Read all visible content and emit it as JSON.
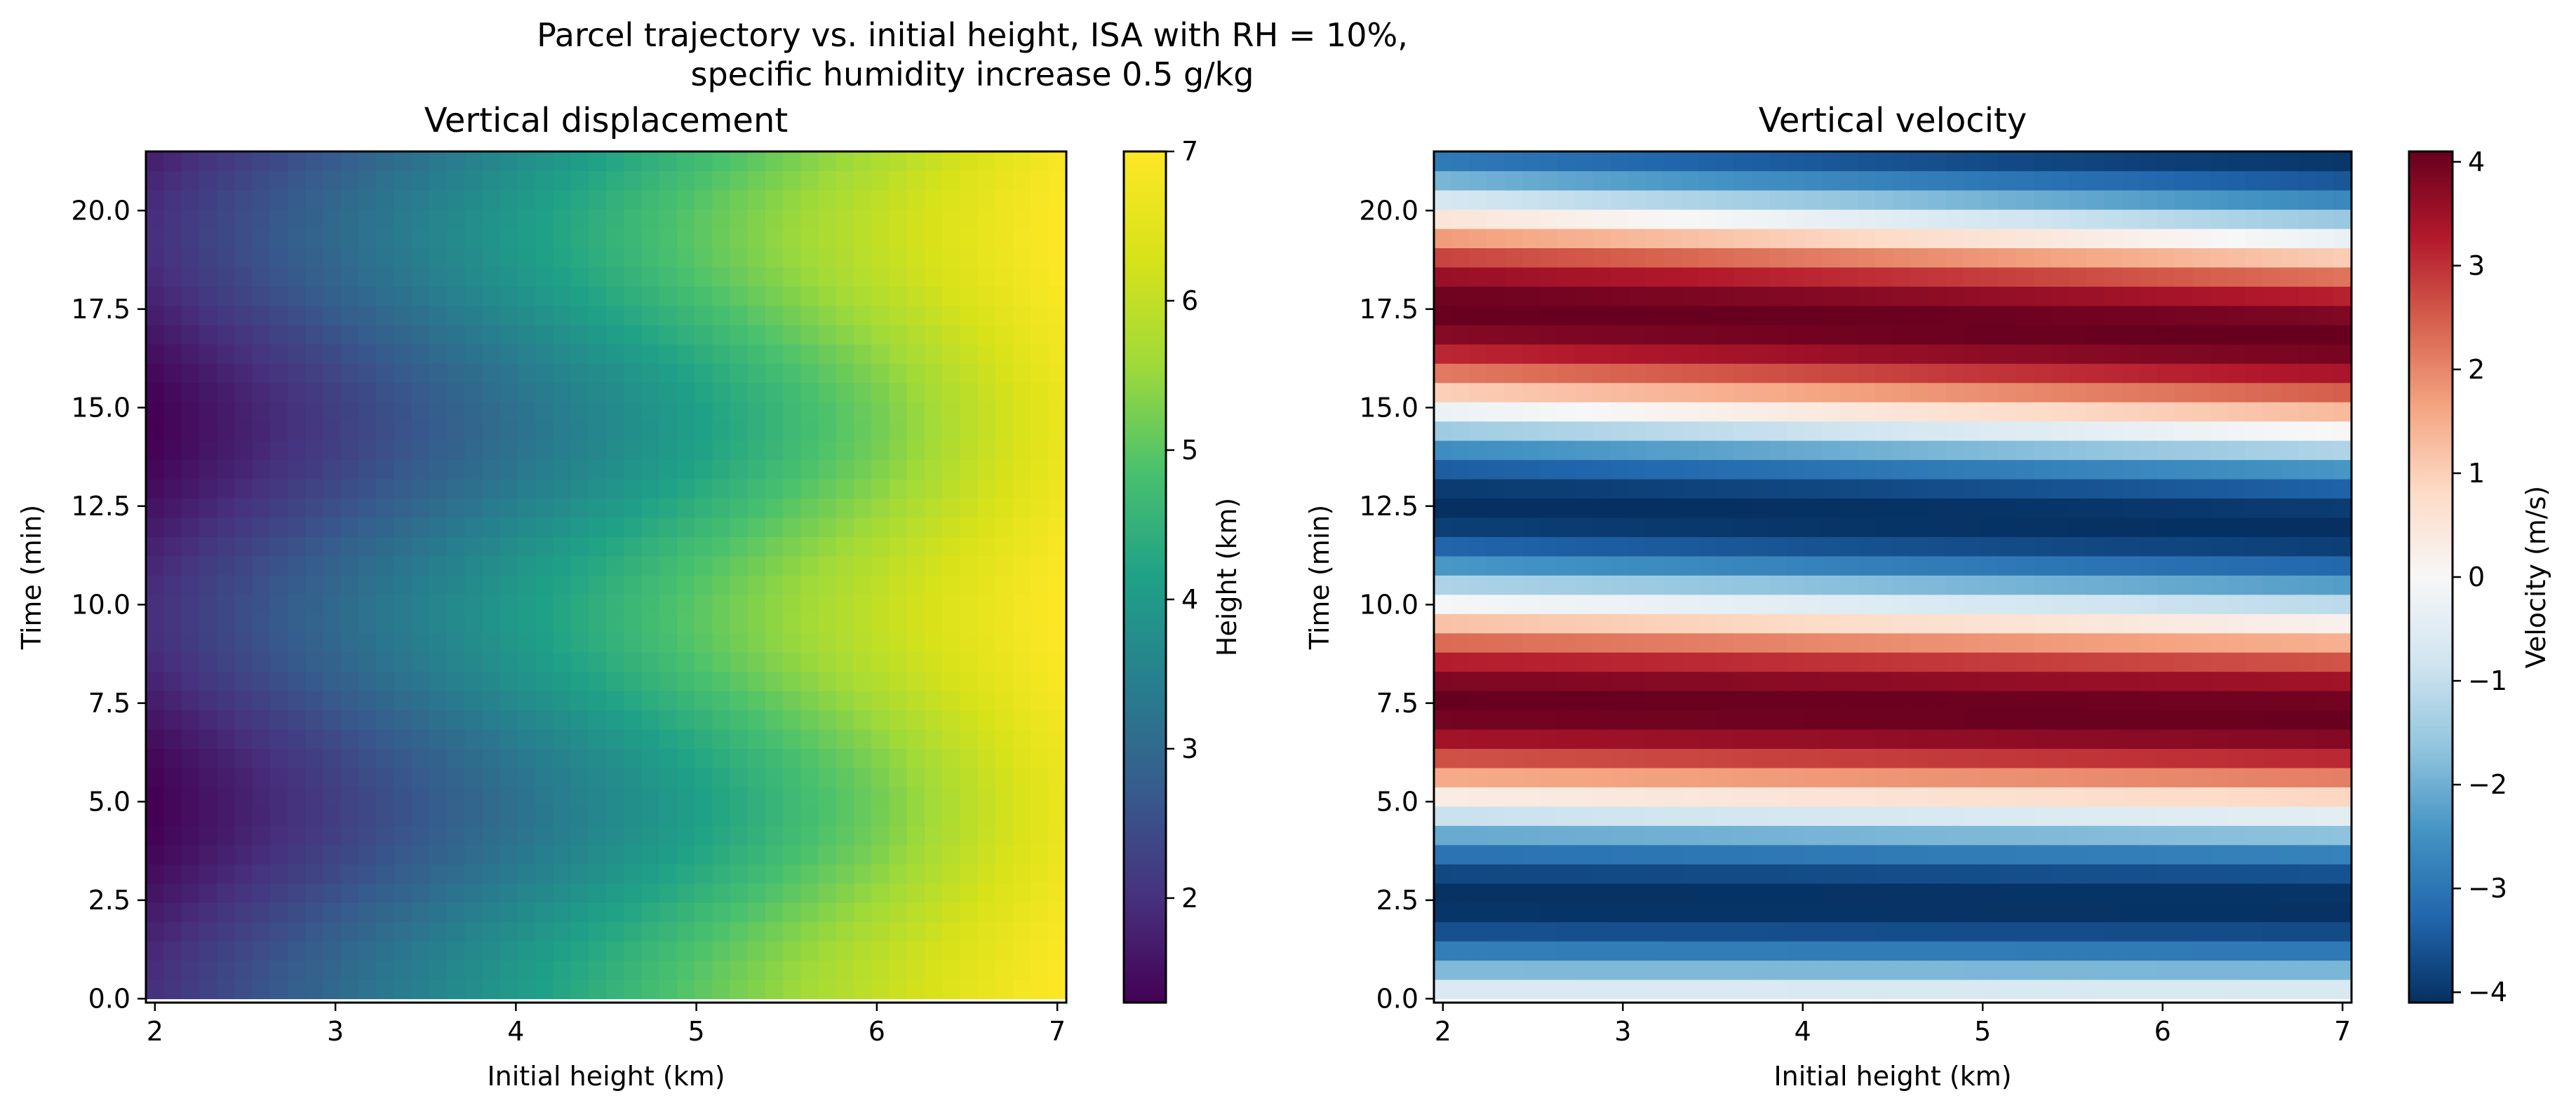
{
  "figure": {
    "title_line1": "Parcel trajectory vs. initial height, ISA with RH = 10%,",
    "title_line2": "specific humidity increase 0.5 g/kg"
  },
  "chart_data": [
    {
      "type": "heatmap",
      "title": "Vertical displacement",
      "xlabel": "Initial height (km)",
      "ylabel": "Time (min)",
      "xlim": [
        1.95,
        7.05
      ],
      "ylim": [
        -0.1,
        21.5
      ],
      "xticks": [
        2,
        3,
        4,
        5,
        6,
        7
      ],
      "yticks": [
        0.0,
        2.5,
        5.0,
        7.5,
        10.0,
        12.5,
        15.0,
        17.5,
        20.0
      ],
      "grid": {
        "nx": 52,
        "ny": 44,
        "x0": 2.0,
        "x1": 7.0,
        "t0": 0.0,
        "t1": 21.5
      },
      "model": "height = initial_height - amplitude(initial_height) * (1 - cos(2*pi*t/period)) / 2",
      "period_min": 9.7,
      "amplitude_km": {
        "x": [
          2,
          3,
          4,
          5,
          6,
          7
        ],
        "values": [
          0.7,
          0.78,
          0.85,
          0.9,
          0.82,
          0.4
        ]
      },
      "colormap": "viridis",
      "colorbar": {
        "label": "Height (km)",
        "vmin": 1.3,
        "vmax": 7.0,
        "ticks": [
          2,
          3,
          4,
          5,
          6,
          7
        ]
      }
    },
    {
      "type": "heatmap",
      "title": "Vertical velocity",
      "xlabel": "Initial height (km)",
      "ylabel": "Time (min)",
      "xlim": [
        1.95,
        7.05
      ],
      "ylim": [
        -0.1,
        21.5
      ],
      "xticks": [
        2,
        3,
        4,
        5,
        6,
        7
      ],
      "yticks": [
        0.0,
        2.5,
        5.0,
        7.5,
        10.0,
        12.5,
        15.0,
        17.5,
        20.0
      ],
      "grid": {
        "nx": 52,
        "ny": 44,
        "x0": 2.0,
        "x1": 7.0,
        "t0": 0.0,
        "t1": 21.5
      },
      "model": "velocity = -peak * sin(2*pi*t/period)",
      "period_min": {
        "x": [
          2,
          7
        ],
        "values": [
          10.0,
          9.6
        ]
      },
      "peak_m_s": 4.1,
      "colormap": "RdBu_r",
      "colorbar": {
        "label": "Velocity (m/s)",
        "vmin": -4.1,
        "vmax": 4.1,
        "ticks": [
          -4,
          -3,
          -2,
          -1,
          0,
          1,
          2,
          3,
          4
        ]
      }
    }
  ]
}
